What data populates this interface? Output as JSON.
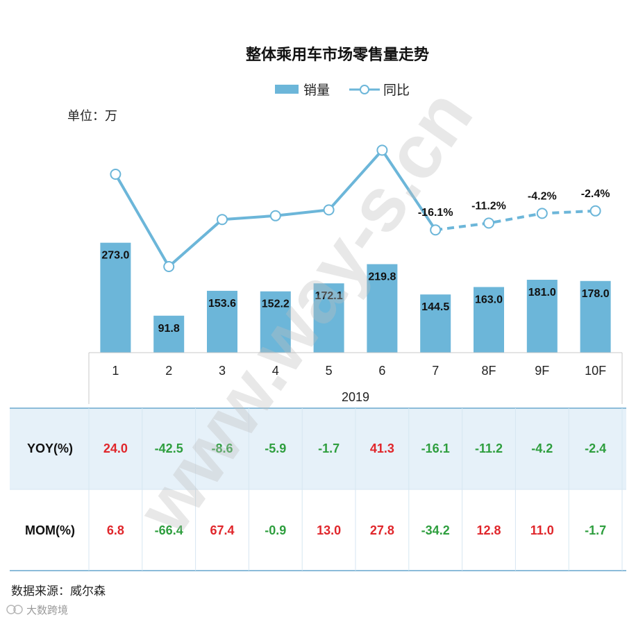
{
  "chart_data": {
    "type": "bar",
    "title": "整体乘用车市场零售量走势",
    "unit": "单位：万",
    "legend": [
      {
        "name": "销量",
        "kind": "bar",
        "color": "#6cb6d9"
      },
      {
        "name": "同比",
        "kind": "line",
        "color": "#6cb6d9"
      }
    ],
    "legend_position": "top-center",
    "categories": [
      "1",
      "2",
      "3",
      "4",
      "5",
      "6",
      "7",
      "8F",
      "9F",
      "10F"
    ],
    "group_label": "2019",
    "series": [
      {
        "name": "销量",
        "type": "bar",
        "values": [
          273.0,
          91.8,
          153.6,
          152.2,
          172.1,
          219.8,
          144.5,
          163.0,
          181.0,
          178.0
        ],
        "labels": [
          "273.0",
          "91.8",
          "153.6",
          "152.2",
          "172.1",
          "219.8",
          "144.5",
          "163.0",
          "181.0",
          "178.0"
        ]
      },
      {
        "name": "同比",
        "type": "line",
        "values": [
          24.0,
          -42.5,
          -8.6,
          -5.9,
          -1.7,
          41.3,
          -16.1,
          -11.2,
          -4.2,
          -2.4
        ],
        "labels": [
          "",
          "",
          "",
          "",
          "",
          "",
          "-16.1%",
          "-11.2%",
          "-4.2%",
          "-2.4%"
        ],
        "dashed_from_index": 6
      }
    ],
    "grid": false,
    "table": {
      "rows": [
        {
          "header": "YOY(%)",
          "values": [
            "24.0",
            "-42.5",
            "-8.6",
            "-5.9",
            "-1.7",
            "41.3",
            "-16.1",
            "-11.2",
            "-4.2",
            "-2.4"
          ]
        },
        {
          "header": "MOM(%)",
          "values": [
            "6.8",
            "-66.4",
            "67.4",
            "-0.9",
            "13.0",
            "27.8",
            "-34.2",
            "12.8",
            "11.0",
            "-1.7"
          ]
        }
      ],
      "positive_color": "#e0262b",
      "negative_color": "#2e9e3e",
      "row_backgrounds": [
        "#e6f1f9",
        "#ffffff"
      ]
    }
  },
  "source": "数据来源：威尔森",
  "watermark": "www.way-s.cn",
  "footer_logo": "大数跨境"
}
